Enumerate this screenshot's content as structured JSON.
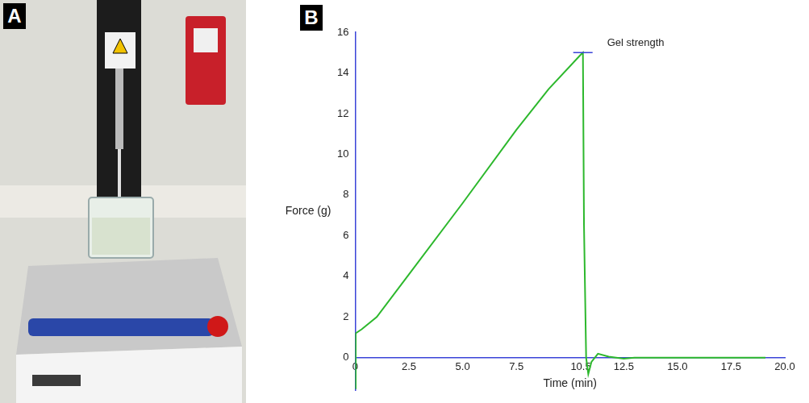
{
  "panel_labels": [
    "A",
    "B"
  ],
  "chart_data": {
    "type": "line",
    "x_label": "Time (min)",
    "y_label": "Force (g)",
    "x": [
      0,
      0.02,
      0.3,
      1.0,
      2.5,
      5.0,
      7.5,
      9.0,
      10.5,
      10.6,
      10.65,
      10.75,
      10.85,
      11.0,
      11.3,
      11.8,
      12.5,
      13.0,
      15.0,
      17.5,
      19.1
    ],
    "values": [
      -1.5,
      1.2,
      1.4,
      2.0,
      4.1,
      7.6,
      11.2,
      13.2,
      14.9,
      15.0,
      6.5,
      0.0,
      -0.8,
      -0.2,
      0.2,
      0.05,
      -0.05,
      0.0,
      0.0,
      0.0,
      0.0
    ],
    "color": "#2db82d",
    "marker": "none",
    "line_style": "solid",
    "xlim": [
      0,
      20
    ],
    "ylim": [
      -1.6,
      16
    ],
    "xticks": [
      0,
      2.5,
      {
        "value": 5,
        "label": "5.0"
      },
      7.5,
      10.5,
      12.5,
      {
        "value": 15,
        "label": "15.0"
      },
      17.5,
      {
        "value": 20,
        "label": "20.0"
      }
    ],
    "yticks": [
      0,
      2,
      4,
      6,
      8,
      10,
      12,
      14,
      16
    ],
    "grid": false,
    "annotations": [
      {
        "text": "Gel strength",
        "x": 10.6,
        "y": 15
      }
    ]
  }
}
